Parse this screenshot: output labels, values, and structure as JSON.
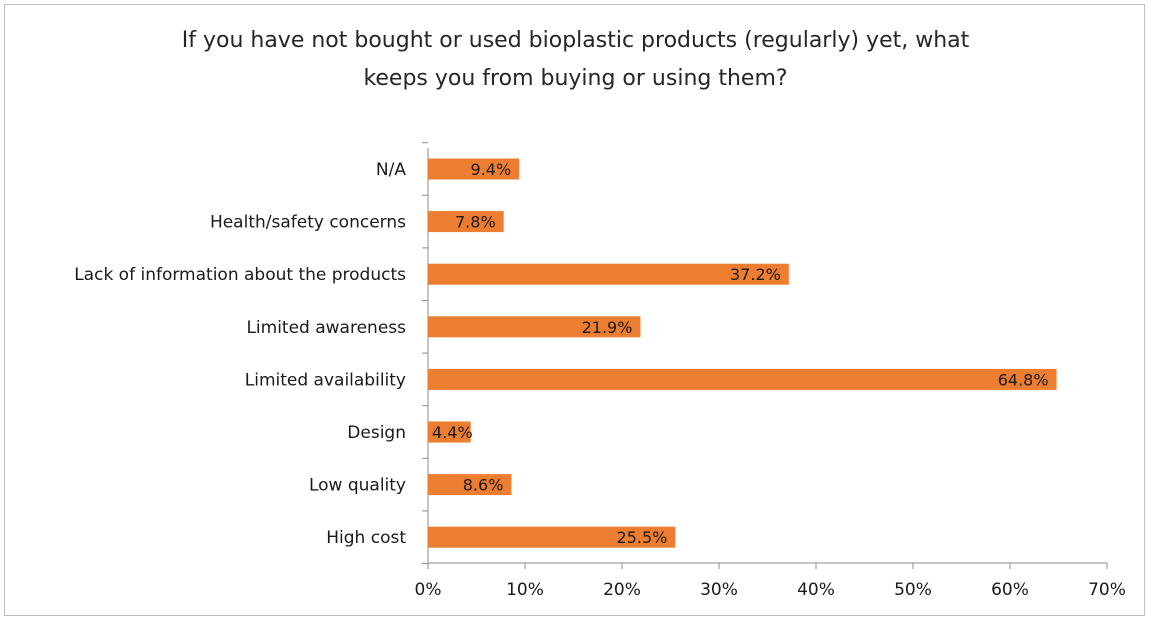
{
  "chart_data": {
    "type": "bar",
    "orientation": "horizontal",
    "title_lines": [
      "If you have not bought or used bioplastic products (regularly) yet, what",
      "keeps you from buying or using them?"
    ],
    "categories": [
      "N/A",
      "Health/safety concerns",
      "Lack of information about the products",
      "Limited awareness",
      "Limited availability",
      "Design",
      "Low quality",
      "High cost"
    ],
    "values": [
      9.4,
      7.8,
      37.2,
      21.9,
      64.8,
      4.4,
      8.6,
      25.5
    ],
    "data_labels": [
      "9.4%",
      "7.8%",
      "37.2%",
      "21.9%",
      "64.8%",
      "4.4%",
      "8.6%",
      "25.5%"
    ],
    "xlim": [
      0,
      70
    ],
    "x_ticks": [
      0,
      10,
      20,
      30,
      40,
      50,
      60,
      70
    ],
    "x_tick_labels": [
      "0%",
      "10%",
      "20%",
      "30%",
      "40%",
      "50%",
      "60%",
      "70%"
    ],
    "grid": false,
    "legend": "none",
    "bar_color": "#ED7D31"
  }
}
